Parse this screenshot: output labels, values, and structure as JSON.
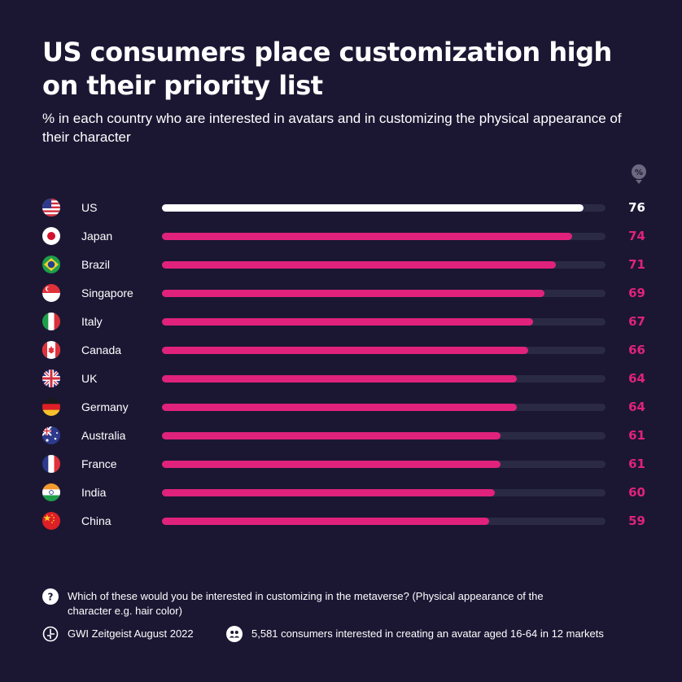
{
  "header": {
    "title": "US consumers place customization high on their priority list",
    "subtitle": "% in each country who are interested in avatars and in customizing the physical appearance of their character"
  },
  "icons": {
    "percent": "percent-badge-icon",
    "question": "question-icon",
    "source": "gwi-logo-icon",
    "base": "people-icon"
  },
  "colors": {
    "background": "#1b1733",
    "highlight": "#ffffff",
    "accent": "#e0227c",
    "track": "#2b2a45"
  },
  "chart_data": {
    "type": "bar",
    "orientation": "horizontal",
    "unit": "%",
    "xlim": [
      0,
      80
    ],
    "grid": false,
    "categories": [
      "US",
      "Japan",
      "Brazil",
      "Singapore",
      "Italy",
      "Canada",
      "UK",
      "Germany",
      "Australia",
      "France",
      "India",
      "China"
    ],
    "values": [
      76,
      74,
      71,
      69,
      67,
      66,
      64,
      64,
      61,
      61,
      60,
      59
    ],
    "highlighted": [
      "US"
    ]
  },
  "footer": {
    "question": "Which of these would you be interested in customizing in the metaverse? (Physical appearance of the character e.g. hair color)",
    "source": "GWI Zeitgeist August 2022",
    "base": "5,581 consumers interested in creating an avatar aged 16-64 in 12 markets"
  }
}
